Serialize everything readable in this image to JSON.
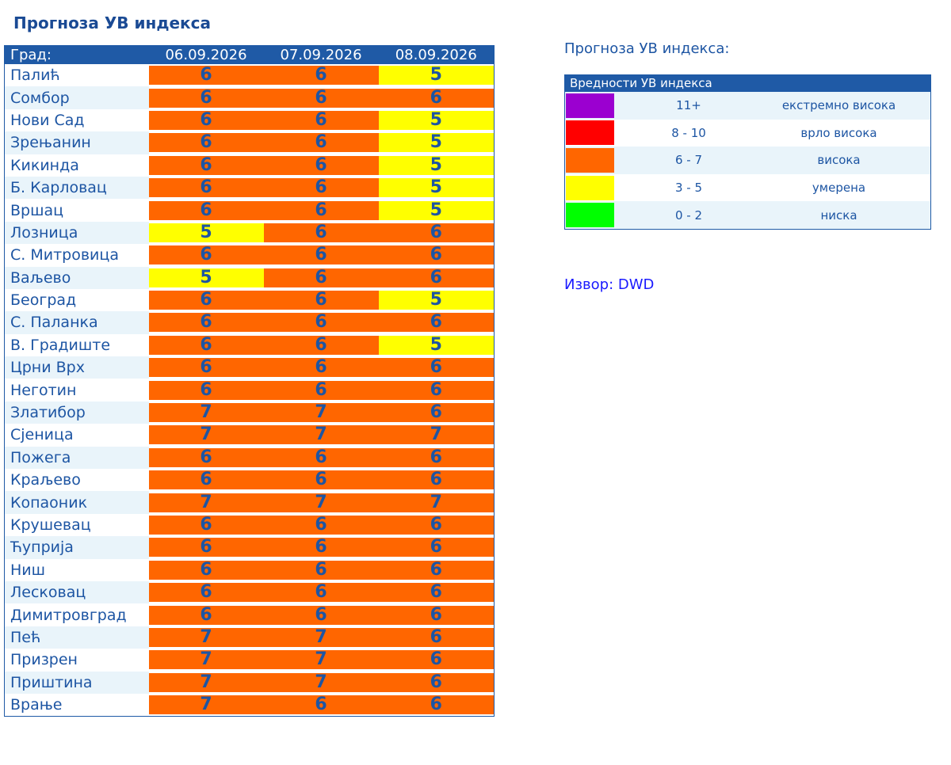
{
  "page_title": "Прогноза УВ индекса",
  "table": {
    "headers": [
      "Град:",
      "06.09.2026",
      "07.09.2026",
      "08.09.2026"
    ],
    "rows": [
      {
        "city": "Палић",
        "values": [
          "6",
          "6",
          "5"
        ]
      },
      {
        "city": "Сомбор",
        "values": [
          "6",
          "6",
          "6"
        ]
      },
      {
        "city": "Нови Сад",
        "values": [
          "6",
          "6",
          "5"
        ]
      },
      {
        "city": "Зрењанин",
        "values": [
          "6",
          "6",
          "5"
        ]
      },
      {
        "city": "Кикинда",
        "values": [
          "6",
          "6",
          "5"
        ]
      },
      {
        "city": "Б. Карловац",
        "values": [
          "6",
          "6",
          "5"
        ]
      },
      {
        "city": "Вршац",
        "values": [
          "6",
          "6",
          "5"
        ]
      },
      {
        "city": "Лозница",
        "values": [
          "5",
          "6",
          "6"
        ]
      },
      {
        "city": "С. Митровица",
        "values": [
          "6",
          "6",
          "6"
        ]
      },
      {
        "city": "Ваљево",
        "values": [
          "5",
          "6",
          "6"
        ]
      },
      {
        "city": "Београд",
        "values": [
          "6",
          "6",
          "5"
        ]
      },
      {
        "city": "С. Паланка",
        "values": [
          "6",
          "6",
          "6"
        ]
      },
      {
        "city": "В. Градиште",
        "values": [
          "6",
          "6",
          "5"
        ]
      },
      {
        "city": "Црни Врх",
        "values": [
          "6",
          "6",
          "6"
        ]
      },
      {
        "city": "Неготин",
        "values": [
          "6",
          "6",
          "6"
        ]
      },
      {
        "city": "Златибор",
        "values": [
          "7",
          "7",
          "6"
        ]
      },
      {
        "city": "Сјеница",
        "values": [
          "7",
          "7",
          "7"
        ]
      },
      {
        "city": "Пожега",
        "values": [
          "6",
          "6",
          "6"
        ]
      },
      {
        "city": "Краљево",
        "values": [
          "6",
          "6",
          "6"
        ]
      },
      {
        "city": "Копаоник",
        "values": [
          "7",
          "7",
          "7"
        ]
      },
      {
        "city": "Крушевац",
        "values": [
          "6",
          "6",
          "6"
        ]
      },
      {
        "city": "Ћуприја",
        "values": [
          "6",
          "6",
          "6"
        ]
      },
      {
        "city": "Ниш",
        "values": [
          "6",
          "6",
          "6"
        ]
      },
      {
        "city": "Лесковац",
        "values": [
          "6",
          "6",
          "6"
        ]
      },
      {
        "city": "Димитровград",
        "values": [
          "6",
          "6",
          "6"
        ]
      },
      {
        "city": "Пећ",
        "values": [
          "7",
          "7",
          "6"
        ]
      },
      {
        "city": "Призрен",
        "values": [
          "7",
          "7",
          "6"
        ]
      },
      {
        "city": "Приштина",
        "values": [
          "7",
          "7",
          "6"
        ]
      },
      {
        "city": "Врање",
        "values": [
          "7",
          "6",
          "6"
        ]
      }
    ]
  },
  "right_title": "Прогноза УВ индекса:",
  "legend": {
    "header": "Вредности УВ индекса",
    "items": [
      {
        "range": "11+",
        "label": "екстремно висока",
        "color": "#9b00d0"
      },
      {
        "range": "8 - 10",
        "label": "врло висока",
        "color": "#ff0000"
      },
      {
        "range": "6 - 7",
        "label": "висока",
        "color": "#ff6600"
      },
      {
        "range": "3 - 5",
        "label": "умерена",
        "color": "#ffff00"
      },
      {
        "range": "0 - 2",
        "label": "ниска",
        "color": "#00ff00"
      }
    ]
  },
  "source": "Извор: DWD"
}
